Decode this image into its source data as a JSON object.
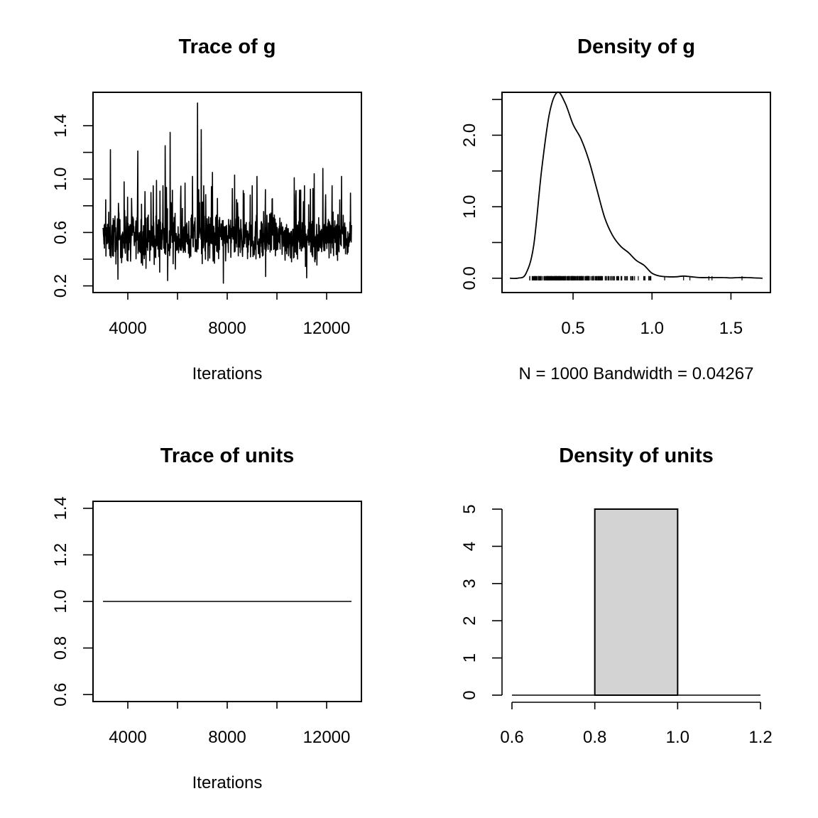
{
  "chart_data": [
    {
      "type": "line",
      "panel": "top-left",
      "title": "Trace of g",
      "xlabel": "Iterations",
      "ylabel": "",
      "xlim": [
        2600,
        13400
      ],
      "ylim": [
        0.15,
        1.65
      ],
      "x_range": [
        3001,
        13000
      ],
      "n_samples": 1000,
      "x_ticks": [
        4000,
        6000,
        8000,
        10000,
        12000
      ],
      "x_tick_labels": [
        "4000",
        "",
        "8000",
        "",
        "12000"
      ],
      "y_ticks": [
        0.2,
        0.4,
        0.6,
        0.8,
        1.0,
        1.2,
        1.4
      ],
      "y_tick_labels": [
        "0.2",
        "",
        "0.6",
        "",
        "1.0",
        "",
        "1.4"
      ],
      "typical_range": [
        0.28,
        0.85
      ],
      "spikes": [
        {
          "x": 3300,
          "y": 1.22
        },
        {
          "x": 3850,
          "y": 0.98
        },
        {
          "x": 4400,
          "y": 1.21
        },
        {
          "x": 5150,
          "y": 0.99
        },
        {
          "x": 5500,
          "y": 1.25
        },
        {
          "x": 5700,
          "y": 1.35
        },
        {
          "x": 6300,
          "y": 0.97
        },
        {
          "x": 6600,
          "y": 1.02
        },
        {
          "x": 6800,
          "y": 1.57
        },
        {
          "x": 6950,
          "y": 1.37
        },
        {
          "x": 7400,
          "y": 1.05
        },
        {
          "x": 8300,
          "y": 1.03
        },
        {
          "x": 9200,
          "y": 1.02
        },
        {
          "x": 10700,
          "y": 1.01
        },
        {
          "x": 11500,
          "y": 1.04
        },
        {
          "x": 11850,
          "y": 1.08
        },
        {
          "x": 12600,
          "y": 1.02
        }
      ],
      "dips": [
        {
          "x": 3600,
          "y": 0.25
        },
        {
          "x": 5600,
          "y": 0.24
        },
        {
          "x": 7850,
          "y": 0.22
        },
        {
          "x": 9550,
          "y": 0.27
        },
        {
          "x": 11200,
          "y": 0.26
        }
      ]
    },
    {
      "type": "line",
      "panel": "top-right",
      "title": "Density of g",
      "xlabel": "N = 1000   Bandwidth = 0.04267",
      "ylabel": "",
      "xlim": [
        0.05,
        1.75
      ],
      "ylim": [
        -0.2,
        2.6
      ],
      "x_ticks": [
        0.5,
        1.0,
        1.5
      ],
      "x_tick_labels": [
        "0.5",
        "1.0",
        "1.5"
      ],
      "y_ticks": [
        0.0,
        0.5,
        1.0,
        1.5,
        2.0,
        2.5
      ],
      "y_tick_labels": [
        "0.0",
        "",
        "1.0",
        "",
        "2.0",
        ""
      ],
      "x": [
        0.1,
        0.15,
        0.2,
        0.25,
        0.3,
        0.35,
        0.4,
        0.45,
        0.5,
        0.55,
        0.6,
        0.65,
        0.7,
        0.75,
        0.8,
        0.85,
        0.9,
        0.95,
        1.0,
        1.05,
        1.1,
        1.15,
        1.2,
        1.25,
        1.3,
        1.35,
        1.4,
        1.45,
        1.5,
        1.55,
        1.6,
        1.65,
        1.7
      ],
      "y": [
        0.0,
        0.002,
        0.06,
        0.45,
        1.5,
        2.3,
        2.6,
        2.45,
        2.15,
        1.95,
        1.65,
        1.25,
        0.85,
        0.6,
        0.45,
        0.36,
        0.25,
        0.18,
        0.07,
        0.03,
        0.02,
        0.02,
        0.03,
        0.02,
        0.01,
        0.01,
        0.01,
        0.01,
        0.005,
        0.01,
        0.01,
        0.005,
        0.0
      ],
      "rug_range": [
        0.22,
        1.57
      ]
    },
    {
      "type": "line",
      "panel": "bottom-left",
      "title": "Trace of units",
      "xlabel": "Iterations",
      "ylabel": "",
      "xlim": [
        2600,
        13400
      ],
      "ylim": [
        0.57,
        1.43
      ],
      "x": [
        3001,
        13000
      ],
      "y": [
        1.0,
        1.0
      ],
      "x_ticks": [
        4000,
        6000,
        8000,
        10000,
        12000
      ],
      "x_tick_labels": [
        "4000",
        "",
        "8000",
        "",
        "12000"
      ],
      "y_ticks": [
        0.6,
        0.8,
        1.0,
        1.2,
        1.4
      ],
      "y_tick_labels": [
        "0.6",
        "0.8",
        "1.0",
        "1.2",
        "1.4"
      ]
    },
    {
      "type": "bar",
      "panel": "bottom-right",
      "title": "Density of units",
      "xlabel": "",
      "ylabel": "",
      "xlim": [
        0.6,
        1.2
      ],
      "ylim": [
        0,
        5
      ],
      "bins": [
        {
          "from": 0.6,
          "to": 0.8,
          "density": 0
        },
        {
          "from": 0.8,
          "to": 1.0,
          "density": 5
        },
        {
          "from": 1.0,
          "to": 1.2,
          "density": 0
        }
      ],
      "bar_color": "#d3d3d3",
      "x_ticks": [
        0.6,
        0.8,
        1.0,
        1.2
      ],
      "x_tick_labels": [
        "0.6",
        "0.8",
        "1.0",
        "1.2"
      ],
      "y_ticks": [
        0,
        1,
        2,
        3,
        4,
        5
      ],
      "y_tick_labels": [
        "0",
        "1",
        "2",
        "3",
        "4",
        "5"
      ]
    }
  ]
}
